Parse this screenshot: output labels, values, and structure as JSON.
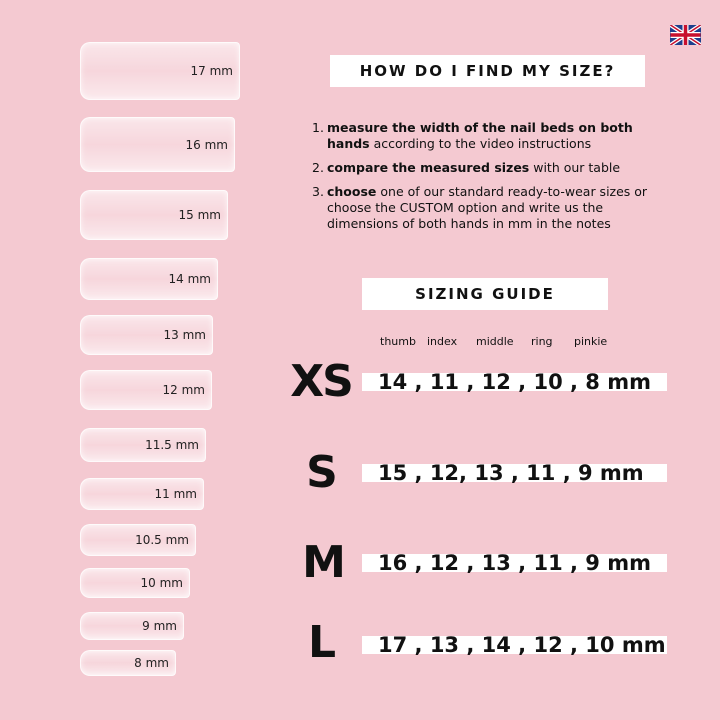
{
  "nails": [
    "17 mm",
    "16 mm",
    "15 mm",
    "14 mm",
    "13 mm",
    "12 mm",
    "11.5 mm",
    "11 mm",
    "10.5 mm",
    "10 mm",
    "9 mm",
    "8 mm"
  ],
  "how_title": "HOW DO I FIND MY SIZE?",
  "steps": [
    {
      "num": "1.",
      "bold": "measure the width of the nail beds on both hands",
      "rest": " according to the video instructions"
    },
    {
      "num": "2.",
      "bold": "compare the measured sizes",
      "rest": " with our table"
    },
    {
      "num": "3.",
      "bold": "choose",
      "rest": " one of our standard ready-to-wear sizes or choose the CUSTOM option and write us the dimensions of both hands in mm in the notes"
    }
  ],
  "guide_title": "SIZING GUIDE",
  "fingers": [
    "thumb",
    "index",
    "middle",
    "ring",
    "pinkie"
  ],
  "sizes": [
    {
      "label": "XS",
      "values": "14 , 11 , 12 , 10 , 8 mm"
    },
    {
      "label": "S",
      "values": "15 , 12, 13 , 11 , 9 mm"
    },
    {
      "label": "M",
      "values": "16 , 12 , 13 , 11 , 9 mm"
    },
    {
      "label": "L",
      "values": "17 , 13 , 14 , 12 , 10 mm"
    }
  ],
  "flag_icon": "uk-flag-icon",
  "colors": {
    "background": "#f4c9d1"
  }
}
